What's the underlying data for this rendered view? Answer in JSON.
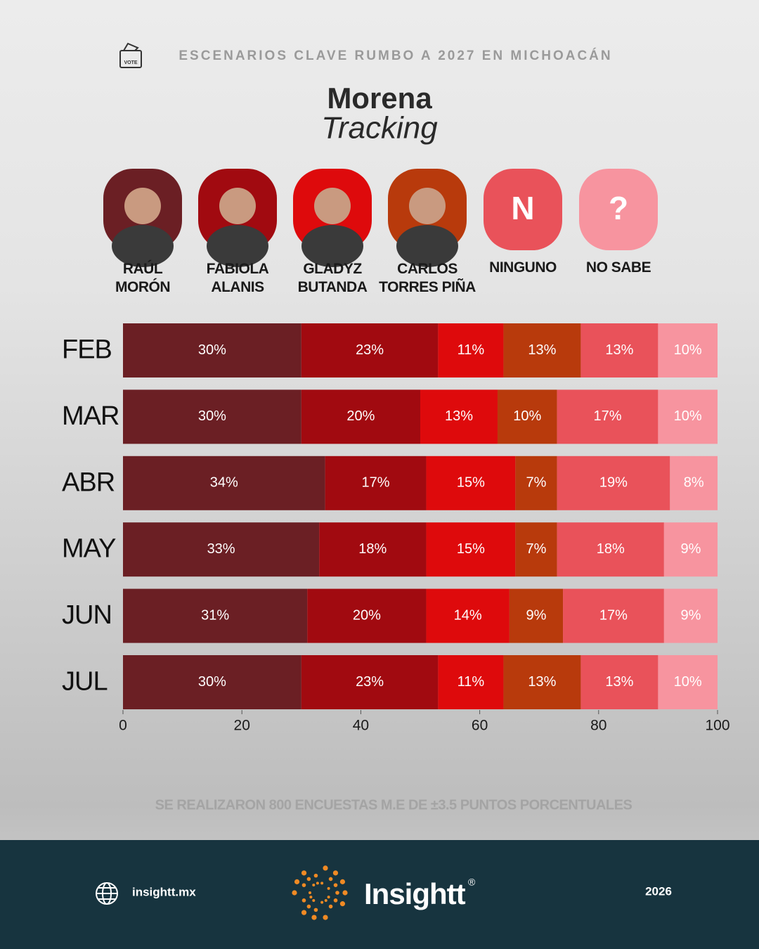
{
  "header": {
    "kicker": "ESCENARIOS CLAVE RUMBO A 2027 EN MICHOACÁN",
    "icon_label": "VOTE"
  },
  "chart_data": {
    "type": "stacked-bar-horizontal",
    "title": "Morena",
    "subtitle": "Tracking",
    "categories": [
      "FEB",
      "MAR",
      "ABR",
      "MAY",
      "JUN",
      "JUL"
    ],
    "series": [
      {
        "name": "RAÚL\nMORÓN",
        "color": "#6b1f24",
        "values": [
          30,
          30,
          34,
          33,
          31,
          30
        ],
        "value_labels": [
          "30%",
          "30%",
          "34%",
          "33%",
          "31%",
          "30%"
        ]
      },
      {
        "name": "FABIOLA\nALANIS",
        "color": "#a10a10",
        "values": [
          23,
          20,
          17,
          18,
          20,
          23
        ],
        "value_labels": [
          "23%",
          "20%",
          "17%",
          "18%",
          "20%",
          "23%"
        ]
      },
      {
        "name": "GLADYZ\nBUTANDA",
        "color": "#de0a0c",
        "values": [
          11,
          13,
          15,
          15,
          14,
          11
        ],
        "value_labels": [
          "11%",
          "13%",
          "15%",
          "15%",
          "14%",
          "11%"
        ]
      },
      {
        "name": "CARLOS\nTORRES PIÑA",
        "color": "#b83a0c",
        "values": [
          13,
          10,
          7,
          7,
          9,
          13
        ],
        "value_labels": [
          "13%",
          "10%",
          "7%",
          "7%",
          "9%",
          "13%"
        ]
      },
      {
        "name": "NINGUNO",
        "color": "#e9525a",
        "icon": "N",
        "values": [
          13,
          17,
          19,
          18,
          17,
          13
        ],
        "value_labels": [
          "13%",
          "17%",
          "19%",
          "18%",
          "17%",
          "13%"
        ]
      },
      {
        "name": "NO SABE",
        "color": "#f7949f",
        "icon": "?",
        "values": [
          10,
          10,
          8,
          9,
          9,
          10
        ],
        "value_labels": [
          "10%",
          "10%",
          "8%",
          "9%",
          "9%",
          "10%"
        ]
      }
    ],
    "xlim": [
      0,
      100
    ],
    "xticks": [
      0,
      20,
      40,
      60,
      80,
      100
    ],
    "note": "SE REALIZARON 800 ENCUESTAS  M.E DE ±3.5 PUNTOS PORCENTUALES"
  },
  "footer": {
    "website": "insightt.mx",
    "brand": "Insightt",
    "brand_mark": "®",
    "year": "2026"
  }
}
